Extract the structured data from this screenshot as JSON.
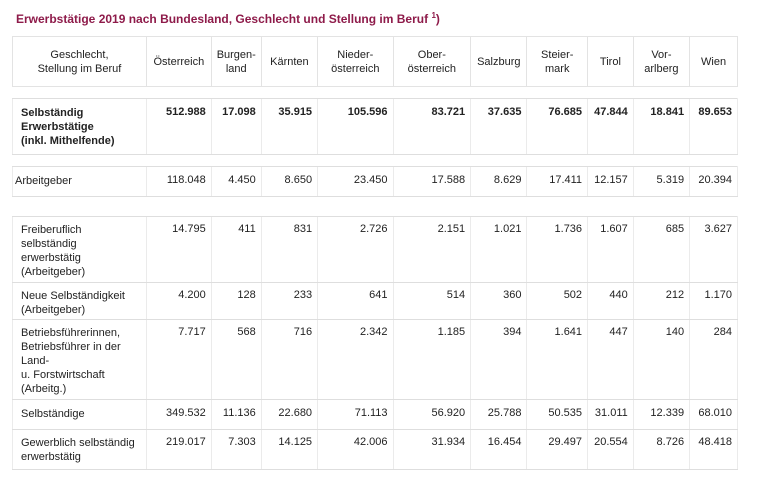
{
  "title": {
    "text": "Erwerbstätige 2019 nach Bundesland, Geschlecht und Stellung im Beruf",
    "footnote_open": " ",
    "footnote": "1",
    "footnote_close": ")"
  },
  "columns": [
    {
      "l1": "Geschlecht,",
      "l2": "Stellung im Beruf"
    },
    {
      "l1": "Österreich",
      "l2": ""
    },
    {
      "l1": "Burgen-",
      "l2": "land"
    },
    {
      "l1": "Kärnten",
      "l2": ""
    },
    {
      "l1": "Nieder-",
      "l2": "österreich"
    },
    {
      "l1": "Ober-",
      "l2": "österreich"
    },
    {
      "l1": "Salzburg",
      "l2": ""
    },
    {
      "l1": "Steier-",
      "l2": "mark"
    },
    {
      "l1": "Tirol",
      "l2": ""
    },
    {
      "l1": "Vor-",
      "l2": "arlberg"
    },
    {
      "l1": "Wien",
      "l2": ""
    }
  ],
  "rows": [
    {
      "id": "selbstaendig",
      "lines": [
        "Selbständig",
        "Erwerbstätige",
        "(inkl. Mithelfende)"
      ],
      "values": [
        "512.988",
        "17.098",
        "35.915",
        "105.596",
        "83.721",
        "37.635",
        "76.685",
        "47.844",
        "18.841",
        "89.653"
      ]
    },
    {
      "id": "arbeitgeber",
      "lines": [
        "Arbeitgeber"
      ],
      "values": [
        "118.048",
        "4.450",
        "8.650",
        "23.450",
        "17.588",
        "8.629",
        "17.411",
        "12.157",
        "5.319",
        "20.394"
      ]
    },
    {
      "id": "freiberuflich",
      "lines": [
        "Freiberuflich",
        "selbständig",
        "erwerbstätig",
        "(Arbeitgeber)"
      ],
      "values": [
        "14.795",
        "411",
        "831",
        "2.726",
        "2.151",
        "1.021",
        "1.736",
        "1.607",
        "685",
        "3.627"
      ]
    },
    {
      "id": "neue",
      "lines": [
        "Neue Selbständigkeit",
        "(Arbeitgeber)"
      ],
      "values": [
        "4.200",
        "128",
        "233",
        "641",
        "514",
        "360",
        "502",
        "440",
        "212",
        "1.170"
      ]
    },
    {
      "id": "betriebsfuehrer",
      "lines": [
        "Betriebsführerinnen,",
        "Betriebsführer in der",
        "Land-",
        "u. Forstwirtschaft",
        "(Arbeitg.)"
      ],
      "values": [
        "7.717",
        "568",
        "716",
        "2.342",
        "1.185",
        "394",
        "1.641",
        "447",
        "140",
        "284"
      ]
    },
    {
      "id": "selbstaendige",
      "lines": [
        "Selbständige"
      ],
      "values": [
        "349.532",
        "11.136",
        "22.680",
        "71.113",
        "56.920",
        "25.788",
        "50.535",
        "31.011",
        "12.339",
        "68.010"
      ]
    },
    {
      "id": "gewerblich",
      "lines": [
        "Gewerblich selbständig",
        "erwerbstätig"
      ],
      "values": [
        "219.017",
        "7.303",
        "14.125",
        "42.006",
        "31.934",
        "16.454",
        "29.497",
        "20.554",
        "8.726",
        "48.418"
      ]
    }
  ]
}
